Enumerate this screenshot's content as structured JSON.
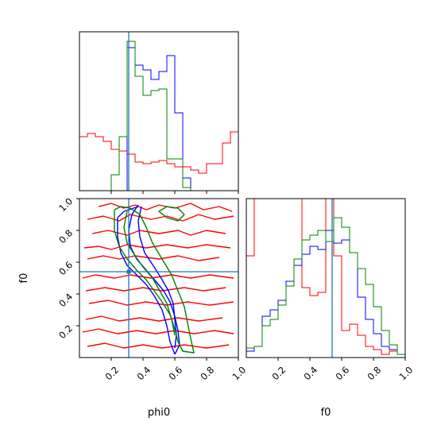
{
  "chart_data": {
    "type": "corner",
    "params": [
      "phi0",
      "f0"
    ],
    "xlabel_phi0": "phi0",
    "xlabel_f0": "f0",
    "ylabel_f0": "f0",
    "range": [
      0,
      1
    ],
    "ticks": [
      0.2,
      0.4,
      0.6,
      0.8,
      1.0
    ],
    "tick_labels": [
      "0.2",
      "0.4",
      "0.6",
      "0.8",
      "1.0"
    ],
    "truth": {
      "phi0": 0.31,
      "f0": 0.54,
      "color": "#1f77b4"
    },
    "series_colors": {
      "red": "#ff0000",
      "blue": "#0000ff",
      "green": "#008000"
    },
    "hist_phi0": {
      "bin_edges": [
        0,
        0.05,
        0.1,
        0.15,
        0.2,
        0.25,
        0.3,
        0.35,
        0.4,
        0.45,
        0.5,
        0.55,
        0.6,
        0.65,
        0.7,
        0.75,
        0.8,
        0.85,
        0.9,
        0.95,
        1.0
      ],
      "red": [
        0.34,
        0.36,
        0.34,
        0.31,
        0.26,
        0.25,
        0.23,
        0.18,
        0.17,
        0.18,
        0.19,
        0.17,
        0.15,
        0.15,
        0.13,
        0.11,
        0.17,
        0.17,
        0.3,
        0.37
      ],
      "blue": [
        0,
        0,
        0,
        0,
        0,
        0,
        0.9,
        0.79,
        0.76,
        0.7,
        0.75,
        0.85,
        0.49,
        0.08,
        0,
        0,
        0,
        0,
        0,
        0
      ],
      "green": [
        0,
        0,
        0,
        0,
        0.1,
        0.34,
        0.94,
        0.72,
        0.6,
        0.63,
        0.64,
        0.2,
        0.2,
        0.02,
        0,
        0,
        0,
        0,
        0,
        0
      ]
    },
    "hist_f0": {
      "bin_edges": [
        0,
        0.05,
        0.1,
        0.15,
        0.2,
        0.25,
        0.3,
        0.35,
        0.4,
        0.45,
        0.5,
        0.55,
        0.6,
        0.65,
        0.7,
        0.75,
        0.8,
        0.85,
        0.9,
        0.95,
        1.0
      ],
      "red": [
        0.64,
        1.05,
        1.05,
        1.05,
        1.05,
        1.05,
        1.05,
        0.44,
        0.39,
        0.41,
        1.05,
        0.64,
        0.17,
        0.21,
        0.14,
        0.07,
        0.05,
        0.02,
        0.04,
        0.02
      ],
      "blue": [
        0.04,
        0.07,
        0.26,
        0.3,
        0.36,
        0.48,
        0.58,
        0.65,
        0.7,
        0.68,
        0.8,
        0.72,
        0.74,
        0.66,
        0.38,
        0.24,
        0.15,
        0.07,
        0.05,
        0.02
      ],
      "green": [
        0.06,
        0.07,
        0.2,
        0.24,
        0.33,
        0.45,
        0.62,
        0.74,
        0.77,
        0.8,
        0.73,
        0.88,
        0.82,
        0.66,
        0.56,
        0.46,
        0.32,
        0.17,
        0.08,
        0.02
      ]
    },
    "contours_2d": {
      "red": [
        [
          [
            0.12,
            0.95
          ],
          [
            0.2,
            0.97
          ],
          [
            0.28,
            0.94
          ],
          [
            0.35,
            0.96
          ],
          [
            0.42,
            0.93
          ],
          [
            0.5,
            0.96
          ],
          [
            0.6,
            0.94
          ],
          [
            0.7,
            0.97
          ],
          [
            0.78,
            0.93
          ],
          [
            0.88,
            0.95
          ],
          [
            0.96,
            0.92
          ]
        ],
        [
          [
            0.05,
            0.87
          ],
          [
            0.15,
            0.89
          ],
          [
            0.25,
            0.86
          ],
          [
            0.32,
            0.9
          ],
          [
            0.45,
            0.87
          ],
          [
            0.55,
            0.89
          ],
          [
            0.65,
            0.86
          ],
          [
            0.75,
            0.9
          ],
          [
            0.85,
            0.87
          ],
          [
            0.97,
            0.89
          ]
        ],
        [
          [
            0.08,
            0.78
          ],
          [
            0.18,
            0.8
          ],
          [
            0.3,
            0.77
          ],
          [
            0.38,
            0.8
          ],
          [
            0.5,
            0.78
          ],
          [
            0.62,
            0.8
          ],
          [
            0.7,
            0.77
          ],
          [
            0.8,
            0.8
          ],
          [
            0.92,
            0.78
          ]
        ],
        [
          [
            0.03,
            0.69
          ],
          [
            0.12,
            0.7
          ],
          [
            0.2,
            0.68
          ],
          [
            0.3,
            0.71
          ],
          [
            0.42,
            0.69
          ],
          [
            0.55,
            0.71
          ],
          [
            0.68,
            0.69
          ],
          [
            0.8,
            0.71
          ],
          [
            0.95,
            0.69
          ]
        ],
        [
          [
            0.05,
            0.62
          ],
          [
            0.15,
            0.64
          ],
          [
            0.25,
            0.62
          ],
          [
            0.35,
            0.64
          ],
          [
            0.5,
            0.62
          ],
          [
            0.62,
            0.64
          ],
          [
            0.75,
            0.61
          ],
          [
            0.88,
            0.63
          ]
        ],
        [
          [
            0.02,
            0.5
          ],
          [
            0.1,
            0.52
          ],
          [
            0.22,
            0.5
          ],
          [
            0.32,
            0.52
          ],
          [
            0.45,
            0.5
          ],
          [
            0.58,
            0.52
          ],
          [
            0.7,
            0.5
          ],
          [
            0.82,
            0.52
          ],
          [
            0.97,
            0.5
          ]
        ],
        [
          [
            0.04,
            0.42
          ],
          [
            0.16,
            0.44
          ],
          [
            0.28,
            0.42
          ],
          [
            0.4,
            0.44
          ],
          [
            0.52,
            0.42
          ],
          [
            0.66,
            0.44
          ],
          [
            0.78,
            0.42
          ],
          [
            0.92,
            0.44
          ]
        ],
        [
          [
            0.06,
            0.34
          ],
          [
            0.18,
            0.36
          ],
          [
            0.3,
            0.33
          ],
          [
            0.42,
            0.35
          ],
          [
            0.55,
            0.33
          ],
          [
            0.68,
            0.35
          ],
          [
            0.82,
            0.33
          ],
          [
            0.97,
            0.35
          ]
        ],
        [
          [
            0.04,
            0.24
          ],
          [
            0.14,
            0.26
          ],
          [
            0.25,
            0.23
          ],
          [
            0.38,
            0.25
          ],
          [
            0.5,
            0.23
          ],
          [
            0.62,
            0.25
          ],
          [
            0.75,
            0.23
          ],
          [
            0.9,
            0.25
          ]
        ],
        [
          [
            0.02,
            0.16
          ],
          [
            0.12,
            0.18
          ],
          [
            0.24,
            0.15
          ],
          [
            0.36,
            0.17
          ],
          [
            0.48,
            0.15
          ],
          [
            0.6,
            0.17
          ],
          [
            0.72,
            0.15
          ],
          [
            0.85,
            0.17
          ],
          [
            0.97,
            0.15
          ]
        ],
        [
          [
            0.05,
            0.07
          ],
          [
            0.16,
            0.09
          ],
          [
            0.28,
            0.06
          ],
          [
            0.4,
            0.08
          ],
          [
            0.52,
            0.06
          ],
          [
            0.66,
            0.08
          ],
          [
            0.8,
            0.06
          ],
          [
            0.94,
            0.08
          ]
        ]
      ],
      "blue": [
        [
          [
            0.37,
            0.96
          ],
          [
            0.33,
            0.9
          ],
          [
            0.31,
            0.8
          ],
          [
            0.32,
            0.7
          ],
          [
            0.36,
            0.62
          ],
          [
            0.42,
            0.55
          ],
          [
            0.48,
            0.48
          ],
          [
            0.53,
            0.42
          ],
          [
            0.57,
            0.35
          ],
          [
            0.6,
            0.26
          ],
          [
            0.62,
            0.17
          ],
          [
            0.63,
            0.08
          ],
          [
            0.6,
            0.02
          ]
        ],
        [
          [
            0.39,
            0.95
          ],
          [
            0.37,
            0.86
          ],
          [
            0.38,
            0.76
          ],
          [
            0.41,
            0.66
          ],
          [
            0.47,
            0.57
          ],
          [
            0.52,
            0.49
          ],
          [
            0.56,
            0.42
          ],
          [
            0.59,
            0.34
          ],
          [
            0.6,
            0.24
          ],
          [
            0.61,
            0.14
          ],
          [
            0.6,
            0.06
          ]
        ],
        [
          [
            0.24,
            0.88
          ],
          [
            0.24,
            0.76
          ],
          [
            0.26,
            0.66
          ],
          [
            0.3,
            0.58
          ],
          [
            0.36,
            0.52
          ],
          [
            0.42,
            0.46
          ],
          [
            0.47,
            0.39
          ],
          [
            0.52,
            0.3
          ],
          [
            0.55,
            0.2
          ],
          [
            0.57,
            0.1
          ]
        ],
        [
          [
            0.37,
            0.95
          ],
          [
            0.28,
            0.92
          ],
          [
            0.24,
            0.88
          ]
        ],
        [
          [
            0.57,
            0.1
          ],
          [
            0.6,
            0.02
          ]
        ]
      ],
      "green": [
        [
          [
            0.22,
            0.93
          ],
          [
            0.22,
            0.8
          ],
          [
            0.25,
            0.7
          ],
          [
            0.3,
            0.62
          ],
          [
            0.36,
            0.55
          ],
          [
            0.42,
            0.49
          ],
          [
            0.47,
            0.42
          ],
          [
            0.52,
            0.35
          ],
          [
            0.57,
            0.27
          ],
          [
            0.6,
            0.18
          ],
          [
            0.62,
            0.1
          ],
          [
            0.65,
            0.04
          ],
          [
            0.72,
            0.03
          ],
          [
            0.7,
            0.12
          ],
          [
            0.68,
            0.22
          ],
          [
            0.66,
            0.32
          ],
          [
            0.62,
            0.42
          ],
          [
            0.58,
            0.52
          ],
          [
            0.52,
            0.62
          ],
          [
            0.46,
            0.72
          ],
          [
            0.42,
            0.82
          ],
          [
            0.38,
            0.9
          ],
          [
            0.32,
            0.94
          ],
          [
            0.26,
            0.95
          ],
          [
            0.22,
            0.93
          ]
        ],
        [
          [
            0.3,
            0.92
          ],
          [
            0.28,
            0.82
          ],
          [
            0.3,
            0.72
          ],
          [
            0.35,
            0.64
          ],
          [
            0.4,
            0.57
          ],
          [
            0.46,
            0.5
          ],
          [
            0.5,
            0.43
          ],
          [
            0.55,
            0.34
          ],
          [
            0.58,
            0.24
          ],
          [
            0.6,
            0.14
          ]
        ],
        [
          [
            0.55,
            0.95
          ],
          [
            0.62,
            0.94
          ],
          [
            0.66,
            0.9
          ],
          [
            0.62,
            0.86
          ],
          [
            0.55,
            0.88
          ],
          [
            0.5,
            0.92
          ],
          [
            0.55,
            0.95
          ]
        ]
      ]
    }
  }
}
